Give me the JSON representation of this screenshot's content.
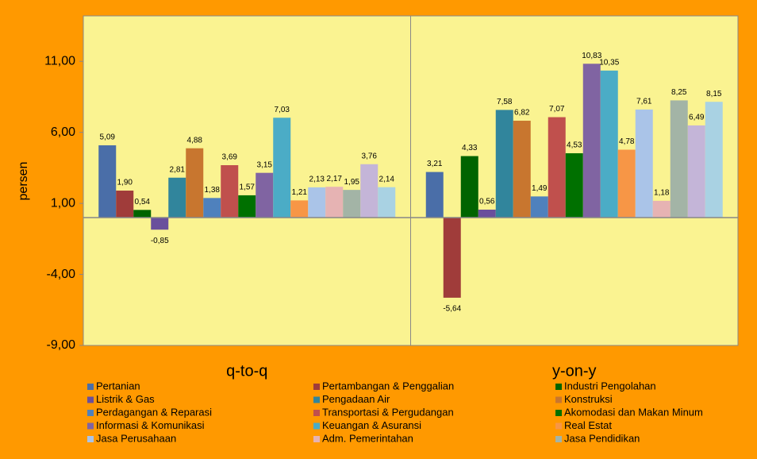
{
  "chart_data": {
    "type": "bar",
    "y_label": "persen",
    "categories": [
      "q-to-q",
      "y-on-y"
    ],
    "ylim": [
      -9,
      14.2
    ],
    "yticks": [
      {
        "value": -9,
        "label": "-9,00"
      },
      {
        "value": -4,
        "label": "-4,00"
      },
      {
        "value": 1,
        "label": "1,00"
      },
      {
        "value": 6,
        "label": "6,00"
      },
      {
        "value": 11,
        "label": "11,00"
      }
    ],
    "series": [
      {
        "name": "Pertanian",
        "color": "#4a6ea8",
        "values": [
          5.09,
          3.21
        ],
        "value_labels": [
          "5,09",
          "3,21"
        ]
      },
      {
        "name": "Pertambangan & Penggalian",
        "color": "#a03c3a",
        "values": [
          1.9,
          -5.64
        ],
        "value_labels": [
          "1,90",
          "-5,64"
        ]
      },
      {
        "name": "Industri Pengolahan",
        "color": "#006400",
        "values": [
          0.54,
          4.33
        ],
        "value_labels": [
          "0,54",
          "4,33"
        ]
      },
      {
        "name": "Listrik & Gas",
        "color": "#6a4f9c",
        "values": [
          -0.85,
          0.56
        ],
        "value_labels": [
          "-0,85",
          "0,56"
        ]
      },
      {
        "name": "Pengadaan Air",
        "color": "#31859c",
        "values": [
          2.81,
          7.58
        ],
        "value_labels": [
          "2,81",
          "7,58"
        ]
      },
      {
        "name": "Konstruksi",
        "color": "#c8762f",
        "values": [
          4.88,
          6.82
        ],
        "value_labels": [
          "4,88",
          "6,82"
        ]
      },
      {
        "name": "Perdagangan & Reparasi",
        "color": "#4f81bd",
        "values": [
          1.38,
          1.49
        ],
        "value_labels": [
          "1,38",
          "1,49"
        ]
      },
      {
        "name": "Transportasi & Pergudangan",
        "color": "#c0504d",
        "values": [
          3.69,
          7.07
        ],
        "value_labels": [
          "3,69",
          "7,07"
        ]
      },
      {
        "name": "Akomodasi dan Makan Minum",
        "color": "#007000",
        "values": [
          1.57,
          4.53
        ],
        "value_labels": [
          "1,57",
          "4,53"
        ]
      },
      {
        "name": "Informasi & Komunikasi",
        "color": "#8064a2",
        "values": [
          3.15,
          10.83
        ],
        "value_labels": [
          "3,15",
          "10,83"
        ]
      },
      {
        "name": "Keuangan & Asuransi",
        "color": "#4bacc6",
        "values": [
          7.03,
          10.35
        ],
        "value_labels": [
          "7,03",
          "10,35"
        ]
      },
      {
        "name": "Real Estat",
        "color": "#f79646",
        "values": [
          1.21,
          4.78
        ],
        "value_labels": [
          "1,21",
          "4,78"
        ]
      },
      {
        "name": "Jasa Perusahaan",
        "color": "#aac4e8",
        "values": [
          2.13,
          7.61
        ],
        "value_labels": [
          "2,13",
          "7,61"
        ]
      },
      {
        "name": "Adm. Pemerintahan",
        "color": "#e6b3b3",
        "values": [
          2.17,
          1.18
        ],
        "value_labels": [
          "2,17",
          "1,18"
        ]
      },
      {
        "name": "Jasa Pendidikan",
        "color": "#a3b4a6",
        "values": [
          1.95,
          8.25
        ],
        "value_labels": [
          "1,95",
          "8,25"
        ]
      },
      {
        "color": "#c4b5d8",
        "values": [
          3.76,
          6.49
        ],
        "value_labels": [
          "3,76",
          "6,49"
        ]
      },
      {
        "color": "#a9d2e3",
        "values": [
          2.14,
          8.15
        ],
        "value_labels": [
          "2,14",
          "8,15"
        ]
      }
    ]
  }
}
